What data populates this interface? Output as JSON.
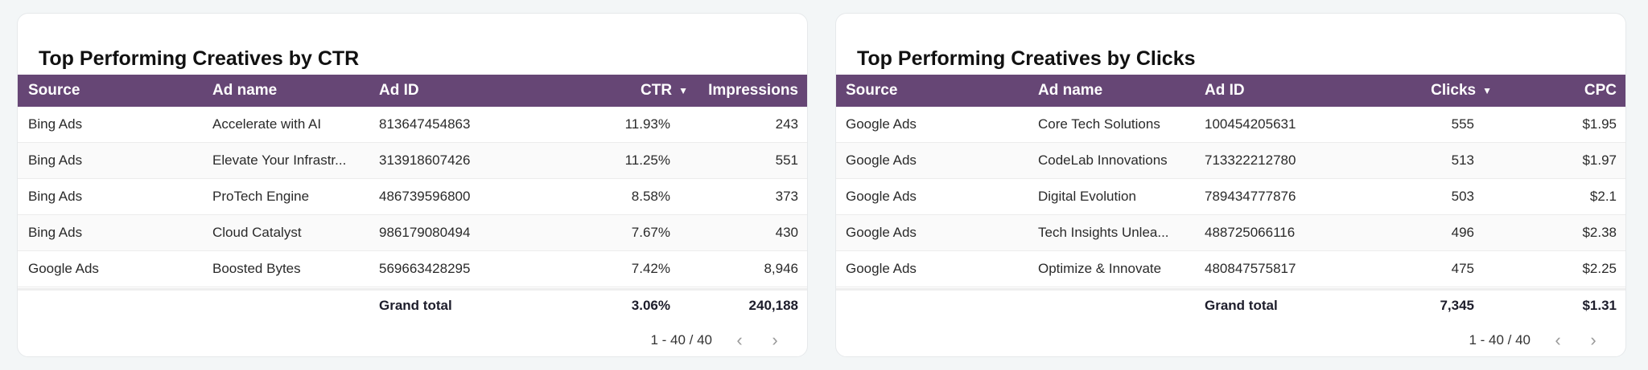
{
  "tables": [
    {
      "title": "Top Performing Creatives by CTR",
      "columns": [
        "Source",
        "Ad name",
        "Ad ID",
        "CTR",
        "Impressions"
      ],
      "sort_icon": "▼",
      "rows": [
        [
          "Bing Ads",
          "Accelerate with AI",
          "813647454863",
          "11.93%",
          "243"
        ],
        [
          "Bing Ads",
          "Elevate Your Infrastr...",
          "313918607426",
          "11.25%",
          "551"
        ],
        [
          "Bing Ads",
          "ProTech Engine",
          "486739596800",
          "8.58%",
          "373"
        ],
        [
          "Bing Ads",
          "Cloud Catalyst",
          "986179080494",
          "7.67%",
          "430"
        ],
        [
          "Google Ads",
          "Boosted Bytes",
          "569663428295",
          "7.42%",
          "8,946"
        ]
      ],
      "total": {
        "label": "Grand total",
        "metric1": "3.06%",
        "metric2": "240,188"
      },
      "pagination": "1 - 40 / 40"
    },
    {
      "title": "Top Performing Creatives by Clicks",
      "columns": [
        "Source",
        "Ad name",
        "Ad ID",
        "Clicks",
        "CPC"
      ],
      "sort_icon": "▼",
      "rows": [
        [
          "Google Ads",
          "Core Tech Solutions",
          "100454205631",
          "555",
          "$1.95"
        ],
        [
          "Google Ads",
          "CodeLab Innovations",
          "713322212780",
          "513",
          "$1.97"
        ],
        [
          "Google Ads",
          "Digital Evolution",
          "789434777876",
          "503",
          "$2.1"
        ],
        [
          "Google Ads",
          "Tech Insights Unlea...",
          "488725066116",
          "496",
          "$2.38"
        ],
        [
          "Google Ads",
          "Optimize & Innovate",
          "480847575817",
          "475",
          "$2.25"
        ]
      ],
      "total": {
        "label": "Grand total",
        "metric1": "7,345",
        "metric2": "$1.31"
      },
      "pagination": "1 - 40 / 40"
    }
  ],
  "colors": {
    "header": "#664675",
    "background": "#f3f6f7"
  }
}
